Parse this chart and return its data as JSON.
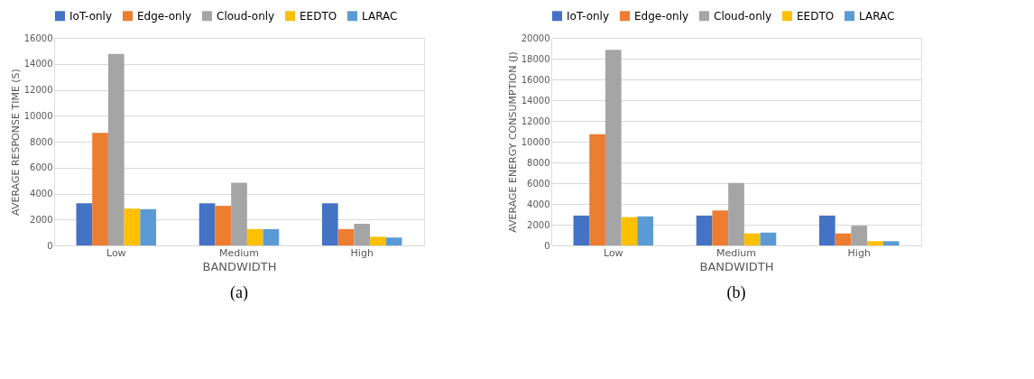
{
  "chart_data": [
    {
      "type": "bar",
      "categories": [
        "Low",
        "Medium",
        "High"
      ],
      "xlabel": "BANDWIDTH",
      "ylabel": "AVERAGE RESPONSE TIME (S)",
      "ylim": [
        0,
        16000
      ],
      "yticks": [
        0,
        2000,
        4000,
        6000,
        8000,
        10000,
        12000,
        14000,
        16000
      ],
      "grid": "y",
      "legend": "top",
      "annotations": [
        "(a)"
      ],
      "series": [
        {
          "name": "IoT-only",
          "color": "#4472c4",
          "values": [
            3250,
            3250,
            3250
          ]
        },
        {
          "name": "Edge-only",
          "color": "#ed7d31",
          "values": [
            8670,
            3050,
            1260
          ]
        },
        {
          "name": "Cloud-only",
          "color": "#a5a5a5",
          "values": [
            14760,
            4830,
            1670
          ]
        },
        {
          "name": "EEDTO",
          "color": "#ffc000",
          "values": [
            2840,
            1260,
            670
          ]
        },
        {
          "name": "LARAC",
          "color": "#5b9bd5",
          "values": [
            2800,
            1260,
            610
          ]
        }
      ]
    },
    {
      "type": "bar",
      "categories": [
        "Low",
        "Medium",
        "High"
      ],
      "xlabel": "BANDWIDTH",
      "ylabel": "AVERAGE ENERGY CONSUMPTION  (J)",
      "ylim": [
        0,
        20000
      ],
      "yticks": [
        0,
        2000,
        4000,
        6000,
        8000,
        10000,
        12000,
        14000,
        16000,
        18000,
        20000
      ],
      "grid": "y",
      "legend": "top",
      "annotations": [
        "(b)"
      ],
      "series": [
        {
          "name": "IoT-only",
          "color": "#4472c4",
          "values": [
            2880,
            2880,
            2880
          ]
        },
        {
          "name": "Edge-only",
          "color": "#ed7d31",
          "values": [
            10710,
            3370,
            1160
          ]
        },
        {
          "name": "Cloud-only",
          "color": "#a5a5a5",
          "values": [
            18840,
            6020,
            1900
          ]
        },
        {
          "name": "EEDTO",
          "color": "#ffc000",
          "values": [
            2730,
            1160,
            410
          ]
        },
        {
          "name": "LARAC",
          "color": "#5b9bd5",
          "values": [
            2800,
            1240,
            410
          ]
        }
      ]
    }
  ]
}
